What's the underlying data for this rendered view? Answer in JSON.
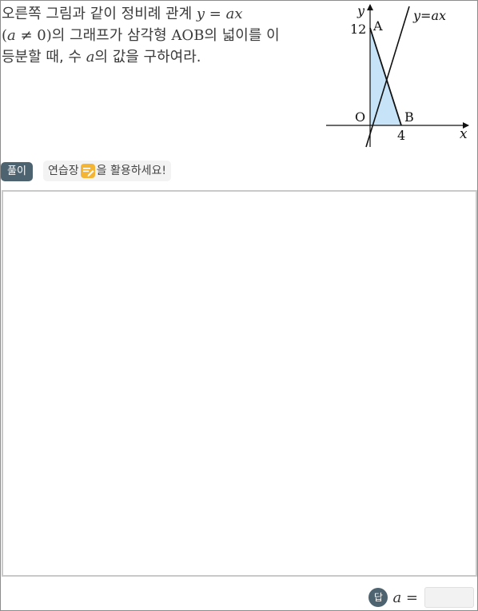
{
  "problem": {
    "line1_text": "오른쪽 그림과 같이 정비례 관계 ",
    "line1_math_y": "y",
    "line1_math_eq": " = ",
    "line1_math_ax": "ax",
    "line2_paren_open": "(",
    "line2_a": "a",
    "line2_neq": " ≠ 0",
    "line2_paren_close": ")",
    "line2_text": "의 그래프가 삼각형 ",
    "line2_aob": "AOB",
    "line2_text2": "의 넓이를 이",
    "line3_text": "등분할 때, 수 ",
    "line3_a": "a",
    "line3_text2": "의 값을 구하여라."
  },
  "graph": {
    "label_y_axis": "y",
    "label_x_axis": "x",
    "label_line": "y=ax",
    "label_A": "A",
    "label_B": "B",
    "label_O": "O",
    "label_12": "12",
    "label_4": "4",
    "fill_color": "#c7e3f8",
    "stroke_color": "#111111"
  },
  "solution": {
    "badge": "풀이",
    "hint_pre": "연습장",
    "hint_post": "을 활용하세요!",
    "icon": "note-pencil-icon"
  },
  "answer": {
    "badge": "답",
    "var": "a",
    "eq": " =",
    "value": ""
  },
  "colors": {
    "badge_bg": "#4d6370",
    "icon_bg": "#f4b534",
    "border": "#c9c9c9"
  }
}
